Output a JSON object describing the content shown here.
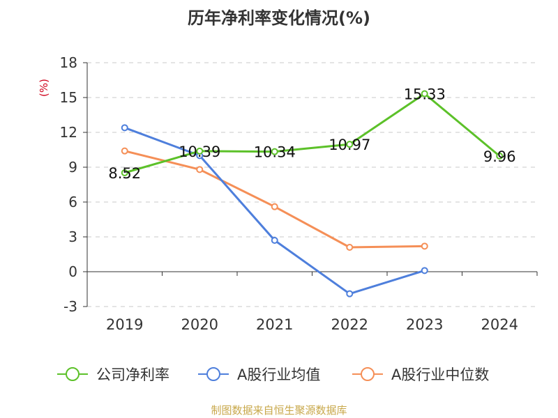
{
  "chart_data": {
    "type": "line",
    "title": "历年净利率变化情况(%)",
    "ylabel": "(%)",
    "xlabel": "",
    "categories": [
      "2019",
      "2020",
      "2021",
      "2022",
      "2023",
      "2024"
    ],
    "ylim": [
      -3,
      18
    ],
    "yticks": [
      18,
      15,
      12,
      9,
      6,
      3,
      0,
      -3
    ],
    "grid": true,
    "legend_position": "bottom",
    "series": [
      {
        "name": "公司净利率",
        "color": "#5cc129",
        "values": [
          8.52,
          10.39,
          10.34,
          10.97,
          15.33,
          9.96
        ],
        "labels": [
          "8.52",
          "10.39",
          "10.34",
          "10.97",
          "15.33",
          "9.96"
        ]
      },
      {
        "name": "A股行业均值",
        "color": "#4e7fdc",
        "values": [
          12.4,
          10.0,
          2.7,
          -1.9,
          0.1,
          null
        ]
      },
      {
        "name": "A股行业中位数",
        "color": "#f58f57",
        "values": [
          10.4,
          8.8,
          5.6,
          2.1,
          2.2,
          null
        ]
      }
    ]
  },
  "footer": "制图数据来自恒生聚源数据库"
}
